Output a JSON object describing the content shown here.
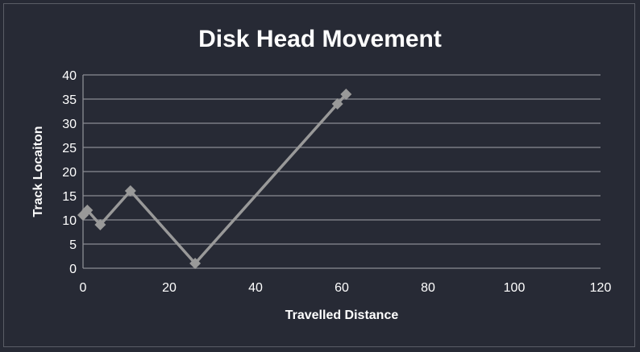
{
  "chart_data": {
    "type": "line",
    "title": "Disk Head Movement",
    "xlabel": "Travelled Distance",
    "ylabel": "Track Locaiton",
    "xlim": [
      0,
      120
    ],
    "ylim": [
      0,
      40
    ],
    "xticks": [
      0,
      20,
      40,
      60,
      80,
      100,
      120
    ],
    "yticks": [
      0,
      5,
      10,
      15,
      20,
      25,
      30,
      35,
      40
    ],
    "grid": "horizontal",
    "legend": "none",
    "marker": "diamond",
    "colors": {
      "background": "#272a35",
      "line": "#999999",
      "grid": "#8a8c93",
      "text": "#ffffff"
    },
    "series": [
      {
        "x": [
          0,
          1,
          4,
          11,
          26,
          59,
          61
        ],
        "y": [
          11,
          12,
          9,
          16,
          1,
          34,
          36
        ]
      }
    ]
  }
}
